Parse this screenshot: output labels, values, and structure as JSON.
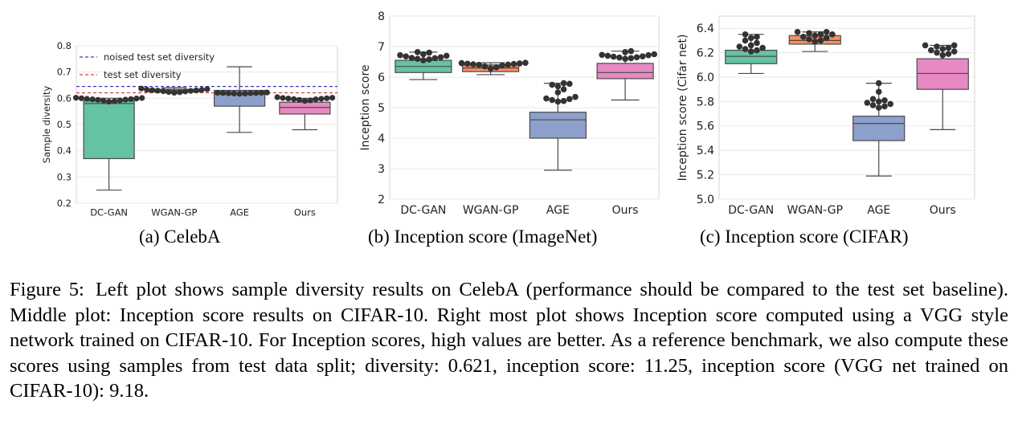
{
  "figure": {
    "caption_label": "Figure 5:",
    "caption_text": "Left plot shows sample diversity results on CelebA (performance should be compared to the test set baseline). Middle plot: Inception score results on CIFAR-10. Right most plot shows Inception score computed using a VGG style network trained on CIFAR-10. For Inception scores, high values are better.  As a reference benchmark, we also compute these scores using samples from test data split; diversity: 0.621, inception score: 11.25, inception score (VGG net trained on CIFAR-10): 9.18."
  },
  "colors": {
    "DC-GAN": "#66c2a5",
    "WGAN-GP": "#fc8d62",
    "AGE": "#8da0cb",
    "Ours": "#e78ac3",
    "noised_line": "#3a3ab8",
    "test_line": "#d84040",
    "box_edge": "#4a4a4a",
    "point": "#333333",
    "grid": "#e8e8e8"
  },
  "chart_data": [
    {
      "type": "box",
      "caption": "(a)  CelebA",
      "title": "",
      "xlabel": "",
      "ylabel": "Sample diversity",
      "ylim": [
        0.2,
        0.8
      ],
      "yticks": [
        "0.2",
        "0.3",
        "0.4",
        "0.5",
        "0.6",
        "0.7",
        "0.8"
      ],
      "grid": true,
      "legend": "top-left",
      "categories": [
        "DC-GAN",
        "WGAN-GP",
        "AGE",
        "Ours"
      ],
      "boxes": [
        {
          "name": "DC-GAN",
          "whislo": 0.25,
          "q1": 0.37,
          "med": 0.58,
          "q3": 0.59,
          "whishi": 0.6,
          "points": [
            0.587,
            0.589,
            0.591,
            0.592,
            0.594,
            0.595,
            0.596,
            0.597,
            0.598,
            0.599,
            0.6,
            0.601,
            0.602
          ]
        },
        {
          "name": "WGAN-GP",
          "whislo": 0.62,
          "q1": 0.624,
          "med": 0.629,
          "q3": 0.634,
          "whishi": 0.64,
          "points": [
            0.621,
            0.623,
            0.624,
            0.626,
            0.627,
            0.628,
            0.629,
            0.63,
            0.631,
            0.632,
            0.633,
            0.635,
            0.637
          ]
        },
        {
          "name": "AGE",
          "whislo": 0.47,
          "q1": 0.57,
          "med": 0.615,
          "q3": 0.63,
          "whishi": 0.72,
          "points": [
            0.617,
            0.618,
            0.618,
            0.619,
            0.619,
            0.62,
            0.62,
            0.621,
            0.621,
            0.622
          ]
        },
        {
          "name": "Ours",
          "whislo": 0.48,
          "q1": 0.54,
          "med": 0.565,
          "q3": 0.585,
          "whishi": 0.6,
          "points": [
            0.59,
            0.592,
            0.594,
            0.596,
            0.597,
            0.598,
            0.599,
            0.6,
            0.601,
            0.602,
            0.604
          ]
        }
      ],
      "hlines": [
        {
          "name": "noised test set diversity",
          "value": 0.645,
          "color": "#3a3ab8"
        },
        {
          "name": "test set diversity",
          "value": 0.621,
          "color": "#d84040"
        }
      ]
    },
    {
      "type": "box",
      "caption": "(b)  Inception score (ImageNet)",
      "title": "",
      "xlabel": "",
      "ylabel": "Inception score",
      "ylim": [
        2,
        8
      ],
      "yticks": [
        "2",
        "3",
        "4",
        "5",
        "6",
        "7",
        "8"
      ],
      "grid": true,
      "categories": [
        "DC-GAN",
        "WGAN-GP",
        "AGE",
        "Ours"
      ],
      "boxes": [
        {
          "name": "DC-GAN",
          "whislo": 5.92,
          "q1": 6.15,
          "med": 6.35,
          "q3": 6.55,
          "whishi": 6.82,
          "points": [
            6.55,
            6.58,
            6.6,
            6.62,
            6.63,
            6.65,
            6.68,
            6.7,
            6.72,
            6.75,
            6.8,
            6.82
          ]
        },
        {
          "name": "WGAN-GP",
          "whislo": 6.08,
          "q1": 6.18,
          "med": 6.3,
          "q3": 6.4,
          "whishi": 6.47,
          "points": [
            6.28,
            6.32,
            6.35,
            6.38,
            6.4,
            6.41,
            6.42,
            6.43,
            6.44,
            6.45,
            6.46,
            6.47
          ]
        },
        {
          "name": "AGE",
          "whislo": 2.95,
          "q1": 4.0,
          "med": 4.6,
          "q3": 4.85,
          "whishi": 5.8,
          "points": [
            5.2,
            5.22,
            5.25,
            5.28,
            5.3,
            5.35,
            5.5,
            5.6,
            5.7,
            5.75,
            5.78,
            5.8
          ]
        },
        {
          "name": "Ours",
          "whislo": 5.25,
          "q1": 5.95,
          "med": 6.15,
          "q3": 6.45,
          "whishi": 6.85,
          "points": [
            6.6,
            6.62,
            6.64,
            6.65,
            6.67,
            6.68,
            6.7,
            6.72,
            6.73,
            6.75,
            6.82,
            6.85
          ]
        }
      ]
    },
    {
      "type": "box",
      "caption": "(c)  Inception score (CIFAR)",
      "title": "",
      "xlabel": "",
      "ylabel": "Inception score (Cifar net)",
      "ylim": [
        5.0,
        6.5
      ],
      "yticks": [
        "5.0",
        "5.2",
        "5.4",
        "5.6",
        "5.8",
        "6.0",
        "6.2",
        "6.4"
      ],
      "grid": true,
      "categories": [
        "DC-GAN",
        "WGAN-GP",
        "AGE",
        "Ours"
      ],
      "boxes": [
        {
          "name": "DC-GAN",
          "whislo": 6.03,
          "q1": 6.11,
          "med": 6.17,
          "q3": 6.22,
          "whishi": 6.35,
          "points": [
            6.21,
            6.22,
            6.23,
            6.24,
            6.25,
            6.26,
            6.28,
            6.3,
            6.32,
            6.33,
            6.35
          ]
        },
        {
          "name": "WGAN-GP",
          "whislo": 6.21,
          "q1": 6.27,
          "med": 6.3,
          "q3": 6.34,
          "whishi": 6.37,
          "points": [
            6.29,
            6.3,
            6.31,
            6.32,
            6.33,
            6.34,
            6.35,
            6.35,
            6.36,
            6.37,
            6.37
          ]
        },
        {
          "name": "AGE",
          "whislo": 5.19,
          "q1": 5.48,
          "med": 5.62,
          "q3": 5.68,
          "whishi": 5.95,
          "points": [
            5.75,
            5.76,
            5.77,
            5.78,
            5.79,
            5.8,
            5.81,
            5.82,
            5.88,
            5.95
          ]
        },
        {
          "name": "Ours",
          "whislo": 5.57,
          "q1": 5.9,
          "med": 6.03,
          "q3": 6.15,
          "whishi": 6.26,
          "points": [
            6.18,
            6.19,
            6.2,
            6.21,
            6.22,
            6.23,
            6.24,
            6.25,
            6.26,
            6.26
          ]
        }
      ]
    }
  ]
}
